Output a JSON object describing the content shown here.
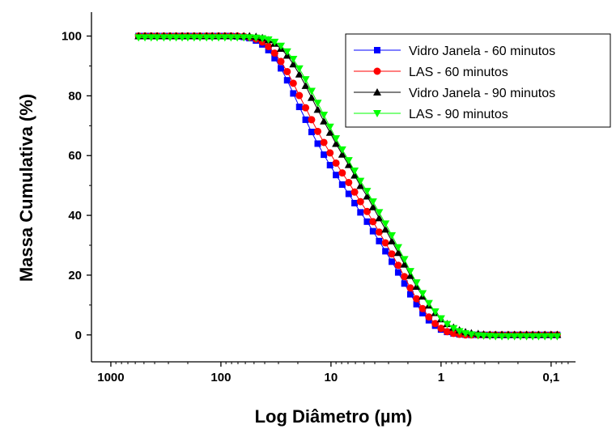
{
  "chart_data": {
    "type": "scatter",
    "xlabel": "Log Diâmetro (µm)",
    "ylabel": "Massa Cumulativa (%)",
    "x_scale": "log-reversed",
    "xlim": [
      1500,
      0.06
    ],
    "ylim": [
      -9,
      108
    ],
    "x_ticks": [
      1000,
      100,
      10,
      1,
      0.1
    ],
    "x_tick_labels": [
      "1000",
      "100",
      "10",
      "1",
      "0,1"
    ],
    "y_ticks": [
      0,
      20,
      40,
      60,
      80,
      100
    ],
    "y_tick_labels": [
      "0",
      "20",
      "40",
      "60",
      "80",
      "100"
    ],
    "grid": false,
    "legend_position": "top-right",
    "series": [
      {
        "name": "Vidro Janela - 60 minutos",
        "color": "#0000ff",
        "marker": "square",
        "x": [
          560,
          490,
          430,
          380,
          330,
          290,
          255,
          225,
          200,
          175,
          155,
          135,
          120,
          105,
          92,
          81,
          71,
          62,
          55,
          48,
          42,
          37,
          32.5,
          28.5,
          25,
          22,
          19.4,
          17,
          15,
          13.2,
          11.6,
          10.2,
          9,
          7.9,
          6.9,
          6.1,
          5.4,
          4.7,
          4.15,
          3.65,
          3.2,
          2.8,
          2.45,
          2.15,
          1.9,
          1.67,
          1.47,
          1.29,
          1.13,
          1,
          0.88,
          0.77,
          0.68,
          0.6,
          0.53,
          0.46,
          0.41,
          0.36,
          0.32,
          0.28,
          0.245,
          0.215,
          0.19,
          0.167,
          0.147,
          0.13,
          0.114,
          0.1,
          0.088
        ],
        "y": [
          100,
          100,
          100,
          100,
          100,
          100,
          100,
          100,
          100,
          100,
          100,
          100,
          100,
          100,
          100,
          100,
          99.9,
          99.7,
          99.3,
          98.5,
          97.2,
          95.3,
          92.6,
          89.2,
          85.2,
          80.8,
          76.3,
          72,
          67.9,
          64,
          60.3,
          56.8,
          53.5,
          50.3,
          47.2,
          44.1,
          41,
          37.9,
          34.7,
          31.4,
          28,
          24.5,
          20.9,
          17.2,
          13.6,
          10.3,
          7.3,
          4.9,
          3.1,
          1.8,
          1,
          0.5,
          0.2,
          0.1,
          0,
          0,
          0,
          0,
          0,
          0,
          0,
          0,
          0,
          0,
          0,
          0,
          0,
          0,
          0
        ]
      },
      {
        "name": "LAS - 60 minutos",
        "color": "#ff0000",
        "marker": "circle",
        "x": [
          560,
          490,
          430,
          380,
          330,
          290,
          255,
          225,
          200,
          175,
          155,
          135,
          120,
          105,
          92,
          81,
          71,
          62,
          55,
          48,
          42,
          37,
          32.5,
          28.5,
          25,
          22,
          19.4,
          17,
          15,
          13.2,
          11.6,
          10.2,
          9,
          7.9,
          6.9,
          6.1,
          5.4,
          4.7,
          4.15,
          3.65,
          3.2,
          2.8,
          2.45,
          2.15,
          1.9,
          1.67,
          1.47,
          1.29,
          1.13,
          1,
          0.88,
          0.77,
          0.68,
          0.6,
          0.53,
          0.46,
          0.41,
          0.36,
          0.32,
          0.28,
          0.245,
          0.215,
          0.19,
          0.167,
          0.147,
          0.13,
          0.114,
          0.1,
          0.088
        ],
        "y": [
          100,
          100,
          100,
          100,
          100,
          100,
          100,
          100,
          100,
          100,
          100,
          100,
          100,
          100,
          100,
          100,
          100,
          99.9,
          99.6,
          99,
          98,
          96.5,
          94.3,
          91.5,
          88.1,
          84.2,
          80.1,
          76,
          72,
          68.1,
          64.4,
          60.9,
          57.5,
          54.2,
          51,
          47.8,
          44.6,
          41.3,
          37.9,
          34.4,
          30.8,
          27.1,
          23.3,
          19.5,
          15.7,
          12.1,
          8.8,
          6,
          3.8,
          2.2,
          1.1,
          0.5,
          0.2,
          0,
          0,
          0,
          0,
          0,
          0,
          0,
          0,
          0,
          0,
          0,
          0,
          0,
          0,
          0,
          0
        ]
      },
      {
        "name": "Vidro Janela - 90 minutos",
        "color": "#000000",
        "marker": "triangle-up",
        "x": [
          560,
          490,
          430,
          380,
          330,
          290,
          255,
          225,
          200,
          175,
          155,
          135,
          120,
          105,
          92,
          81,
          71,
          62,
          55,
          48,
          42,
          37,
          32.5,
          28.5,
          25,
          22,
          19.4,
          17,
          15,
          13.2,
          11.6,
          10.2,
          9,
          7.9,
          6.9,
          6.1,
          5.4,
          4.7,
          4.15,
          3.65,
          3.2,
          2.8,
          2.45,
          2.15,
          1.9,
          1.67,
          1.47,
          1.29,
          1.13,
          1,
          0.88,
          0.77,
          0.68,
          0.6,
          0.53,
          0.46,
          0.41,
          0.36,
          0.32,
          0.28,
          0.245,
          0.215,
          0.19,
          0.167,
          0.147,
          0.13,
          0.114,
          0.1,
          0.088
        ],
        "y": [
          100,
          100,
          100,
          100,
          100,
          100,
          100,
          100,
          100,
          100,
          100,
          100,
          100,
          100,
          100,
          100,
          100,
          100,
          100,
          99.8,
          99.4,
          98.7,
          97.5,
          95.8,
          93.5,
          90.6,
          87.2,
          83.4,
          79.4,
          75.4,
          71.5,
          67.7,
          64,
          60.4,
          56.9,
          53.4,
          49.9,
          46.4,
          42.8,
          39.1,
          35.3,
          31.4,
          27.5,
          23.6,
          19.8,
          16.2,
          12.9,
          9.9,
          7.4,
          5.3,
          3.7,
          2.5,
          1.6,
          1,
          0.6,
          0.4,
          0.2,
          0.1,
          0.1,
          0.1,
          0.1,
          0.1,
          0.1,
          0.1,
          0.1,
          0.1,
          0.1,
          0.1,
          0.1
        ]
      },
      {
        "name": "LAS - 90 minutos",
        "color": "#00ff00",
        "marker": "triangle-down",
        "x": [
          560,
          490,
          430,
          380,
          330,
          290,
          255,
          225,
          200,
          175,
          155,
          135,
          120,
          105,
          92,
          81,
          71,
          62,
          55,
          48,
          42,
          37,
          32.5,
          28.5,
          25,
          22,
          19.4,
          17,
          15,
          13.2,
          11.6,
          10.2,
          9,
          7.9,
          6.9,
          6.1,
          5.4,
          4.7,
          4.15,
          3.65,
          3.2,
          2.8,
          2.45,
          2.15,
          1.9,
          1.67,
          1.47,
          1.29,
          1.13,
          1,
          0.88,
          0.77,
          0.68,
          0.6,
          0.53,
          0.46,
          0.41,
          0.36,
          0.32,
          0.28,
          0.245,
          0.215,
          0.19,
          0.167,
          0.147,
          0.13,
          0.114,
          0.1,
          0.088
        ],
        "y": [
          99.5,
          99.5,
          99.5,
          99.5,
          99.5,
          99.5,
          99.5,
          99.5,
          99.5,
          99.5,
          99.5,
          99.5,
          99.5,
          99.5,
          99.5,
          99.5,
          99.5,
          99.5,
          99.5,
          99.4,
          99.2,
          98.8,
          98,
          96.7,
          94.8,
          92.3,
          89.1,
          85.5,
          81.6,
          77.6,
          73.6,
          69.6,
          65.7,
          62,
          58.4,
          54.9,
          51.5,
          48.1,
          44.6,
          41,
          37.2,
          33.3,
          29.3,
          25.3,
          21.3,
          17.5,
          13.9,
          10.6,
          7.8,
          5.5,
          3.6,
          2.2,
          1.2,
          0.5,
          0.1,
          -0.2,
          -0.3,
          -0.4,
          -0.5,
          -0.5,
          -0.5,
          -0.5,
          -0.5,
          -0.5,
          -0.5,
          -0.5,
          -0.5,
          -0.5,
          -0.5
        ]
      }
    ]
  }
}
